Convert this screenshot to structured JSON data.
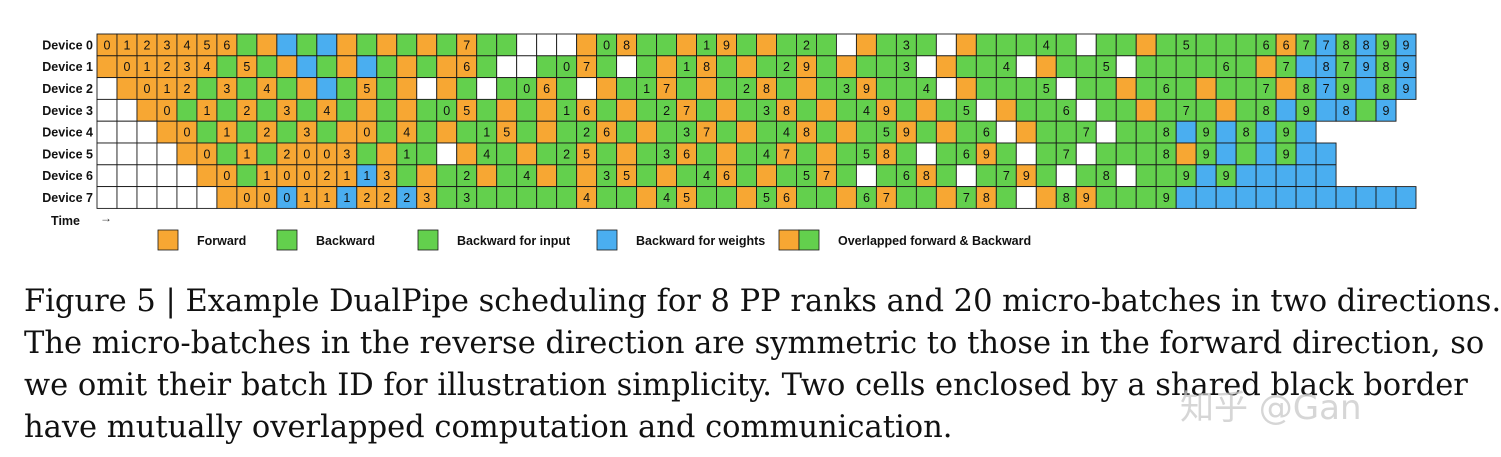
{
  "diagram": {
    "time_label": "Time",
    "time_arrow": "→",
    "colors": {
      "forward": "#F7A733",
      "backward": "#63D04D",
      "backward_weights": "#4AAEF0",
      "empty": "#FFFFFF",
      "border": "#1a1a1a"
    },
    "devices": [
      {
        "label": "Device 0",
        "cells": [
          "F0",
          "F1",
          "F2",
          "F3",
          "F4",
          "F5",
          "F6",
          "B",
          "F",
          "W",
          "B",
          "W",
          "F",
          "B",
          "F",
          "B",
          "F",
          "B",
          "F7",
          "B",
          "B",
          "E",
          "E",
          "E",
          "F",
          "B0",
          "F8",
          "B",
          "B",
          "F",
          "B1",
          "F9",
          "B",
          "F",
          "B",
          "B2",
          "B",
          "E",
          "F",
          "B",
          "B3",
          "B",
          "E",
          "F",
          "B",
          "B",
          "B",
          "B4",
          "B",
          "E",
          "B",
          "B",
          "F",
          "B",
          "B5",
          "B",
          "B",
          "B",
          "B6",
          "F6",
          "B7",
          "W7",
          "B8",
          "W8",
          "B9",
          "W9"
        ]
      },
      {
        "label": "Device 1",
        "cells": [
          "F",
          "F0",
          "F1",
          "F2",
          "F3",
          "F4",
          "B",
          "F5",
          "B",
          "F",
          "W",
          "B",
          "F",
          "W",
          "B",
          "F",
          "B",
          "F",
          "F6",
          "B",
          "E",
          "E",
          "B",
          "B0",
          "F7",
          "B",
          "E",
          "B",
          "F",
          "B1",
          "F8",
          "B",
          "F",
          "B",
          "B2",
          "F9",
          "B",
          "F",
          "B",
          "B",
          "B3",
          "E",
          "F",
          "B",
          "B",
          "B4",
          "E",
          "F",
          "B",
          "B",
          "B5",
          "E",
          "B",
          "B",
          "B",
          "B",
          "B6",
          "B",
          "F",
          "B7",
          "W",
          "W8",
          "B7",
          "W9",
          "B8",
          "W9"
        ]
      },
      {
        "label": "Device 2",
        "cells": [
          "E",
          "F",
          "F0",
          "F1",
          "F2",
          "B",
          "F3",
          "B",
          "F4",
          "B",
          "F",
          "W",
          "B",
          "F5",
          "B",
          "F",
          "E",
          "F",
          "B",
          "E",
          "B",
          "B0",
          "F6",
          "B",
          "E",
          "F",
          "B",
          "B1",
          "F7",
          "B",
          "F",
          "B",
          "B2",
          "F8",
          "B",
          "F",
          "B",
          "B3",
          "F9",
          "B",
          "B",
          "B4",
          "E",
          "F",
          "B",
          "B",
          "B",
          "B5",
          "E",
          "B",
          "B",
          "F",
          "B",
          "B6",
          "B",
          "F",
          "B",
          "B",
          "B7",
          "F",
          "B8",
          "W7",
          "B9",
          "W",
          "B8",
          "W9"
        ]
      },
      {
        "label": "Device 3",
        "cells": [
          "E",
          "E",
          "F",
          "F0",
          "B",
          "F1",
          "B",
          "F2",
          "B",
          "F3",
          "B",
          "F4",
          "B",
          "F",
          "B",
          "F",
          "B",
          "B0",
          "F5",
          "B",
          "F",
          "B",
          "F",
          "B1",
          "F6",
          "B",
          "F",
          "B",
          "B2",
          "F7",
          "B",
          "F",
          "B",
          "B3",
          "F8",
          "B",
          "F",
          "B",
          "B4",
          "F9",
          "B",
          "F",
          "B",
          "B5",
          "E",
          "F",
          "B",
          "B",
          "B6",
          "E",
          "B",
          "B",
          "F",
          "B",
          "B7",
          "B",
          "F",
          "B",
          "B8",
          "W",
          "B9",
          "W",
          "W8",
          "B",
          "W9"
        ]
      },
      {
        "label": "Device 4",
        "cells": [
          "E",
          "E",
          "E",
          "F",
          "F0",
          "B",
          "F1",
          "B",
          "F2",
          "B",
          "F3",
          "B",
          "F",
          "F0",
          "B",
          "F4",
          "B",
          "F",
          "B",
          "B1",
          "F5",
          "B",
          "F",
          "B",
          "B2",
          "F6",
          "B",
          "F",
          "B",
          "B3",
          "F7",
          "B",
          "F",
          "B",
          "B4",
          "F8",
          "B",
          "F",
          "B",
          "B5",
          "F9",
          "B",
          "F",
          "B",
          "B6",
          "E",
          "F",
          "B",
          "B",
          "B7",
          "E",
          "B",
          "B",
          "B8",
          "W",
          "B9",
          "W",
          "B8",
          "W",
          "B9",
          "W"
        ]
      },
      {
        "label": "Device 5",
        "cells": [
          "E",
          "E",
          "E",
          "E",
          "F",
          "F0",
          "B",
          "F1",
          "B",
          "F2",
          "F0",
          "F0",
          "F3",
          "B",
          "F",
          "B1",
          "B",
          "E",
          "F",
          "B4",
          "B",
          "F",
          "B",
          "B2",
          "F5",
          "B",
          "F",
          "B",
          "B3",
          "F6",
          "B",
          "F",
          "B",
          "B4",
          "F7",
          "B",
          "F",
          "B",
          "B5",
          "F8",
          "B",
          "E",
          "B",
          "B6",
          "F9",
          "B",
          "E",
          "B",
          "B7",
          "E",
          "B",
          "B",
          "B",
          "B8",
          "F",
          "B9",
          "W",
          "B",
          "W",
          "B9",
          "W",
          "W"
        ]
      },
      {
        "label": "Device 6",
        "cells": [
          "E",
          "E",
          "E",
          "E",
          "E",
          "F",
          "F0",
          "B",
          "F1",
          "F0",
          "F0",
          "F2",
          "F1",
          "W1",
          "F3",
          "B",
          "F",
          "B",
          "B2",
          "F",
          "B",
          "B4",
          "F",
          "B",
          "F",
          "B3",
          "F5",
          "B",
          "F",
          "B",
          "B4",
          "F6",
          "B",
          "F",
          "B",
          "B5",
          "F7",
          "B",
          "E",
          "B",
          "B6",
          "F8",
          "B",
          "E",
          "B",
          "B7",
          "F9",
          "B",
          "E",
          "B",
          "B8",
          "E",
          "B",
          "B",
          "B9",
          "W",
          "B9",
          "W",
          "W",
          "W",
          "W",
          "W"
        ]
      },
      {
        "label": "Device 7",
        "cells": [
          "E",
          "E",
          "E",
          "E",
          "E",
          "E",
          "F",
          "F0",
          "F0",
          "W0",
          "F1",
          "F1",
          "W1",
          "F2",
          "F2",
          "W2",
          "F3",
          "B",
          "B3",
          "B",
          "B",
          "B",
          "B",
          "B",
          "F4",
          "B",
          "B",
          "F",
          "B4",
          "F5",
          "B",
          "B",
          "F",
          "B5",
          "F6",
          "B",
          "B",
          "F",
          "B6",
          "F7",
          "B",
          "B",
          "F",
          "B7",
          "F8",
          "B",
          "E",
          "F",
          "B8",
          "F9",
          "B",
          "B",
          "B",
          "B9",
          "W",
          "W",
          "W",
          "W",
          "W",
          "W",
          "W",
          "W",
          "W",
          "W",
          "W",
          "W"
        ]
      }
    ],
    "legend": [
      {
        "label": "Forward",
        "swatches": [
          "forward"
        ]
      },
      {
        "label": "Backward",
        "swatches": [
          "backward"
        ]
      },
      {
        "label": "Backward for input",
        "swatches": [
          "backward"
        ]
      },
      {
        "label": "Backward for weights",
        "swatches": [
          "backward_weights"
        ]
      },
      {
        "label": "Overlapped forward & Backward",
        "swatches": [
          "forward",
          "backward"
        ]
      }
    ]
  },
  "caption": {
    "lines": [
      "Figure 5 | Example DualPipe scheduling for 8 PP ranks and 20 micro-batches in two directions.",
      "The micro-batches in the reverse direction are symmetric to those in the forward direction, so",
      "we omit their batch ID for illustration simplicity. Two cells enclosed by a shared black border",
      "have mutually overlapped computation and communication."
    ]
  },
  "watermark": "知乎 @Gan"
}
